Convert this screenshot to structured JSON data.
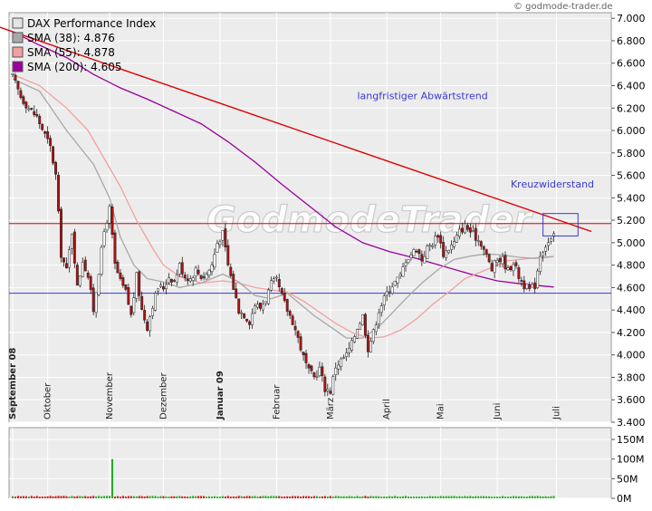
{
  "credit": "© godmode-trader.de",
  "watermark": "GodmodeTrader",
  "chart_data": {
    "type": "line",
    "title": "DAX Performance Index",
    "legend": [
      {
        "label": "DAX Performance Index",
        "color": "#e4e4e4"
      },
      {
        "label": "SMA (38): 4.876",
        "color": "#a8a8a8"
      },
      {
        "label": "SMA (55): 4.878",
        "color": "#f2a0a0"
      },
      {
        "label": "SMA (200): 4.605",
        "color": "#9a009a"
      }
    ],
    "legend_position": "top-left",
    "grid": true,
    "price_axis": {
      "position": "right",
      "ylim": [
        3400,
        7050
      ],
      "ticks": [
        "3.400",
        "3.600",
        "3.800",
        "4.000",
        "4.200",
        "4.400",
        "4.600",
        "4.800",
        "5.000",
        "5.200",
        "5.400",
        "5.600",
        "5.800",
        "6.000",
        "6.200",
        "6.400",
        "6.600",
        "6.800",
        "7.000"
      ]
    },
    "volume_axis": {
      "position": "right",
      "ylim": [
        0,
        180
      ],
      "unit": "M",
      "ticks": [
        "0M",
        "50M",
        "100M",
        "150M"
      ]
    },
    "month_labels": [
      {
        "label": "September 08",
        "day": 0,
        "bold": true
      },
      {
        "label": "Oktober",
        "day": 13,
        "bold": false
      },
      {
        "label": "November",
        "day": 36,
        "bold": false
      },
      {
        "label": "Dezember",
        "day": 56,
        "bold": false
      },
      {
        "label": "Januar 09",
        "day": 77,
        "bold": true
      },
      {
        "label": "Februar",
        "day": 98,
        "bold": false
      },
      {
        "label": "März",
        "day": 118,
        "bold": false
      },
      {
        "label": "April",
        "day": 139,
        "bold": false
      },
      {
        "label": "Mai",
        "day": 159,
        "bold": false
      },
      {
        "label": "Juni",
        "day": 180,
        "bold": false
      },
      {
        "label": "Juli",
        "day": 202,
        "bold": false
      }
    ],
    "day_range": [
      0,
      220
    ],
    "close": [
      [
        0,
        6480
      ],
      [
        3,
        6300
      ],
      [
        6,
        6200
      ],
      [
        9,
        6120
      ],
      [
        12,
        5960
      ],
      [
        14,
        5850
      ],
      [
        16,
        5600
      ],
      [
        18,
        4900
      ],
      [
        20,
        4750
      ],
      [
        22,
        5100
      ],
      [
        24,
        4600
      ],
      [
        26,
        4850
      ],
      [
        28,
        4700
      ],
      [
        30,
        4400
      ],
      [
        32,
        4750
      ],
      [
        34,
        5100
      ],
      [
        36,
        5300
      ],
      [
        38,
        4800
      ],
      [
        40,
        4650
      ],
      [
        42,
        4560
      ],
      [
        44,
        4350
      ],
      [
        46,
        4700
      ],
      [
        48,
        4400
      ],
      [
        50,
        4250
      ],
      [
        52,
        4450
      ],
      [
        54,
        4600
      ],
      [
        56,
        4600
      ],
      [
        58,
        4700
      ],
      [
        60,
        4660
      ],
      [
        62,
        4800
      ],
      [
        64,
        4700
      ],
      [
        66,
        4680
      ],
      [
        68,
        4760
      ],
      [
        70,
        4700
      ],
      [
        72,
        4720
      ],
      [
        74,
        4800
      ],
      [
        76,
        5000
      ],
      [
        78,
        5080
      ],
      [
        80,
        4800
      ],
      [
        82,
        4600
      ],
      [
        84,
        4400
      ],
      [
        86,
        4360
      ],
      [
        88,
        4300
      ],
      [
        90,
        4450
      ],
      [
        92,
        4420
      ],
      [
        94,
        4500
      ],
      [
        96,
        4630
      ],
      [
        98,
        4660
      ],
      [
        100,
        4520
      ],
      [
        102,
        4400
      ],
      [
        104,
        4300
      ],
      [
        106,
        4150
      ],
      [
        108,
        3980
      ],
      [
        110,
        3850
      ],
      [
        112,
        3800
      ],
      [
        114,
        3880
      ],
      [
        116,
        3700
      ],
      [
        118,
        3680
      ],
      [
        120,
        3900
      ],
      [
        122,
        3950
      ],
      [
        124,
        4000
      ],
      [
        126,
        4100
      ],
      [
        128,
        4250
      ],
      [
        130,
        4350
      ],
      [
        132,
        4060
      ],
      [
        134,
        4200
      ],
      [
        136,
        4400
      ],
      [
        138,
        4500
      ],
      [
        140,
        4600
      ],
      [
        142,
        4650
      ],
      [
        144,
        4700
      ],
      [
        146,
        4850
      ],
      [
        148,
        4900
      ],
      [
        150,
        4950
      ],
      [
        152,
        4850
      ],
      [
        154,
        4950
      ],
      [
        156,
        5000
      ],
      [
        158,
        5080
      ],
      [
        160,
        4900
      ],
      [
        162,
        4950
      ],
      [
        164,
        5000
      ],
      [
        166,
        5100
      ],
      [
        168,
        5150
      ],
      [
        170,
        5100
      ],
      [
        172,
        5050
      ],
      [
        174,
        5000
      ],
      [
        176,
        4880
      ],
      [
        178,
        4760
      ],
      [
        180,
        4850
      ],
      [
        182,
        4850
      ],
      [
        184,
        4750
      ],
      [
        186,
        4830
      ],
      [
        188,
        4700
      ],
      [
        190,
        4620
      ],
      [
        192,
        4580
      ],
      [
        194,
        4620
      ],
      [
        196,
        4900
      ],
      [
        198,
        4980
      ],
      [
        200,
        5020
      ],
      [
        201,
        5050
      ]
    ],
    "sma38": [
      [
        0,
        6460
      ],
      [
        10,
        6350
      ],
      [
        20,
        6000
      ],
      [
        30,
        5700
      ],
      [
        36,
        5400
      ],
      [
        40,
        5050
      ],
      [
        45,
        4800
      ],
      [
        50,
        4680
      ],
      [
        56,
        4650
      ],
      [
        62,
        4600
      ],
      [
        70,
        4640
      ],
      [
        78,
        4720
      ],
      [
        84,
        4650
      ],
      [
        90,
        4530
      ],
      [
        96,
        4500
      ],
      [
        102,
        4550
      ],
      [
        106,
        4470
      ],
      [
        112,
        4350
      ],
      [
        118,
        4250
      ],
      [
        124,
        4150
      ],
      [
        130,
        4150
      ],
      [
        136,
        4250
      ],
      [
        140,
        4350
      ],
      [
        146,
        4500
      ],
      [
        152,
        4640
      ],
      [
        158,
        4760
      ],
      [
        164,
        4850
      ],
      [
        170,
        4880
      ],
      [
        176,
        4900
      ],
      [
        182,
        4890
      ],
      [
        188,
        4870
      ],
      [
        194,
        4860
      ],
      [
        201,
        4876
      ]
    ],
    "sma55": [
      [
        0,
        6500
      ],
      [
        10,
        6400
      ],
      [
        20,
        6200
      ],
      [
        28,
        6000
      ],
      [
        34,
        5750
      ],
      [
        40,
        5500
      ],
      [
        46,
        5200
      ],
      [
        52,
        4950
      ],
      [
        56,
        4800
      ],
      [
        62,
        4700
      ],
      [
        70,
        4640
      ],
      [
        78,
        4660
      ],
      [
        84,
        4640
      ],
      [
        90,
        4600
      ],
      [
        96,
        4580
      ],
      [
        102,
        4560
      ],
      [
        108,
        4480
      ],
      [
        114,
        4380
      ],
      [
        120,
        4280
      ],
      [
        126,
        4200
      ],
      [
        132,
        4150
      ],
      [
        138,
        4160
      ],
      [
        144,
        4220
      ],
      [
        150,
        4320
      ],
      [
        156,
        4450
      ],
      [
        162,
        4560
      ],
      [
        168,
        4680
      ],
      [
        176,
        4760
      ],
      [
        184,
        4840
      ],
      [
        192,
        4860
      ],
      [
        201,
        4878
      ]
    ],
    "sma200": [
      [
        0,
        6880
      ],
      [
        10,
        6760
      ],
      [
        20,
        6650
      ],
      [
        30,
        6500
      ],
      [
        40,
        6380
      ],
      [
        50,
        6280
      ],
      [
        60,
        6170
      ],
      [
        70,
        6060
      ],
      [
        80,
        5900
      ],
      [
        90,
        5720
      ],
      [
        100,
        5520
      ],
      [
        110,
        5330
      ],
      [
        120,
        5140
      ],
      [
        130,
        5000
      ],
      [
        140,
        4920
      ],
      [
        150,
        4860
      ],
      [
        160,
        4790
      ],
      [
        170,
        4720
      ],
      [
        180,
        4660
      ],
      [
        190,
        4630
      ],
      [
        201,
        4605
      ]
    ],
    "lines": [
      {
        "label": "langfristiger Abwärtstrend",
        "color": "#dd0000",
        "kind": "trend",
        "from": [
          -12,
          6980
        ],
        "to": [
          215,
          5100
        ]
      },
      {
        "label": "",
        "color": "#dd0000",
        "kind": "horizontal",
        "y": 5170
      },
      {
        "label": "",
        "color": "#3a3ad0",
        "kind": "horizontal",
        "y": 4550
      }
    ],
    "annotations": [
      {
        "text": "langfristiger Abwärtstrend",
        "day": 128,
        "y": 6280
      },
      {
        "text": "Kreuzwiderstand",
        "day": 185,
        "y": 5490
      }
    ],
    "highlight_box": {
      "day_from": 197,
      "day_to": 210,
      "y_from": 5060,
      "y_to": 5260,
      "color": "#3a3ad0"
    },
    "volume": {
      "bar_color": "#cc1111",
      "up_color": "#22aa22",
      "baseline": 4,
      "spike": {
        "day": 37,
        "value": 100
      }
    }
  }
}
